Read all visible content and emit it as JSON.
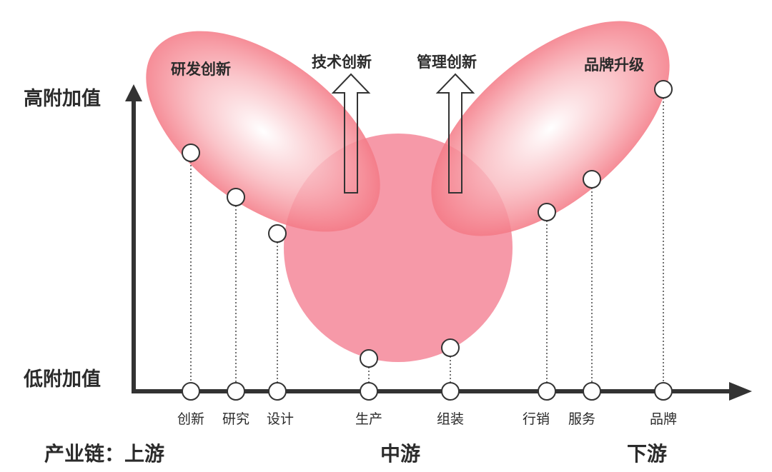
{
  "axis": {
    "y_high": "高附加值",
    "y_low": "低附加值"
  },
  "regions": {
    "left": "研发创新",
    "right": "品牌升级",
    "arrow_left": "技术创新",
    "arrow_right": "管理创新"
  },
  "points": {
    "p1": "创新",
    "p2": "研究",
    "p3": "设计",
    "p4": "生产",
    "p5": "组装",
    "p6": "行销",
    "p7": "服务",
    "p8": "品牌"
  },
  "stages": {
    "prefix": "产业链：上游",
    "middle": "中游",
    "down": "下游"
  },
  "colors": {
    "axis": "#333333",
    "ellipse": "#f47a86",
    "circle": "#f58e9e"
  }
}
